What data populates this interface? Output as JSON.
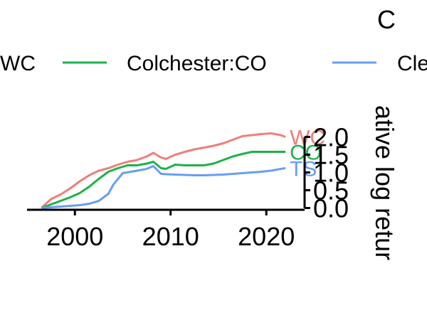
{
  "chart_data": {
    "type": "line",
    "title": "C",
    "xlabel": "",
    "ylabel": "ative log retur",
    "xlim": [
      1995,
      2024
    ],
    "ylim": [
      -0.05,
      2.15
    ],
    "x_ticks": [
      2000,
      2010,
      2020
    ],
    "x_tick_labels": [
      "2000",
      "2010",
      "2020"
    ],
    "y_ticks": [
      0.0,
      0.5,
      1.0,
      1.5,
      2.0
    ],
    "y_tick_labels": [
      "0.0",
      "0.5",
      "1.0",
      "1.5",
      "2.0"
    ],
    "grid": false,
    "legend_position": "top",
    "legend_entries": [
      "WC",
      "Colchester:CO",
      "Cle"
    ],
    "series": [
      {
        "name": "WC",
        "end_label": "WC",
        "color": "#F07E7A",
        "x": [
          1996.5,
          1997.5,
          1998.5,
          1999.5,
          2000.5,
          2001.5,
          2002.5,
          2003.5,
          2004.5,
          2005.5,
          2006.5,
          2007.5,
          2008.2,
          2009.0,
          2009.5,
          2010.5,
          2011.5,
          2012.5,
          2013.5,
          2014.5,
          2015.5,
          2016.5,
          2017.5,
          2018.5,
          2019.5,
          2020.5,
          2021.5,
          2022.0
        ],
        "values": [
          0.0,
          0.25,
          0.38,
          0.55,
          0.75,
          0.92,
          1.05,
          1.12,
          1.22,
          1.3,
          1.35,
          1.45,
          1.55,
          1.42,
          1.38,
          1.5,
          1.58,
          1.65,
          1.7,
          1.75,
          1.82,
          1.92,
          2.02,
          2.05,
          2.08,
          2.1,
          2.05,
          2.0
        ]
      },
      {
        "name": "Colchester:CO",
        "end_label": "CO",
        "color": "#1DB248",
        "x": [
          1996.5,
          1997.5,
          1998.5,
          1999.5,
          2000.5,
          2001.5,
          2002.5,
          2003.5,
          2004.5,
          2005.5,
          2006.5,
          2007.5,
          2008.2,
          2009.0,
          2009.5,
          2010.5,
          2011.5,
          2012.5,
          2013.5,
          2014.5,
          2015.5,
          2016.5,
          2017.5,
          2018.5,
          2019.5,
          2020.5,
          2021.5,
          2022.0
        ],
        "values": [
          0.0,
          0.1,
          0.2,
          0.3,
          0.42,
          0.6,
          0.82,
          1.02,
          1.12,
          1.2,
          1.2,
          1.25,
          1.3,
          1.12,
          1.1,
          1.22,
          1.2,
          1.2,
          1.2,
          1.25,
          1.35,
          1.45,
          1.52,
          1.58,
          1.58,
          1.58,
          1.58,
          1.58
        ]
      },
      {
        "name": "Cle",
        "end_label": "TS",
        "color": "#689DF4",
        "x": [
          1996.5,
          1997.5,
          1998.5,
          1999.5,
          2000.5,
          2001.5,
          2002.5,
          2003.5,
          2004.0,
          2004.5,
          2005.0,
          2006.5,
          2007.5,
          2008.2,
          2009.0,
          2009.5,
          2010.5,
          2011.5,
          2012.5,
          2013.5,
          2014.5,
          2015.5,
          2016.5,
          2017.5,
          2018.5,
          2019.5,
          2020.5,
          2021.5,
          2022.0
        ],
        "values": [
          0.0,
          0.02,
          0.04,
          0.06,
          0.08,
          0.12,
          0.2,
          0.4,
          0.65,
          0.82,
          0.98,
          1.05,
          1.1,
          1.18,
          0.96,
          0.95,
          0.94,
          0.93,
          0.92,
          0.92,
          0.93,
          0.94,
          0.96,
          0.98,
          1.0,
          1.02,
          1.05,
          1.1,
          1.12
        ]
      }
    ]
  }
}
